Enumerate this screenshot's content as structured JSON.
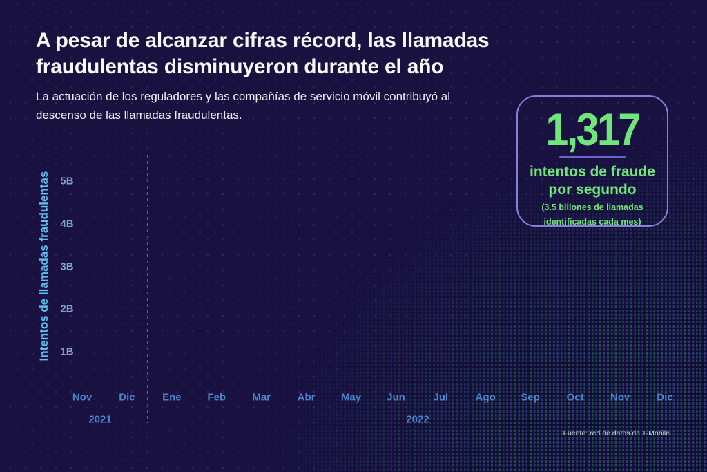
{
  "colors": {
    "background": "#191140",
    "accent_green": "#70e57b",
    "card_border": "#8680d8",
    "divider_purple": "#6a64c8",
    "axis_cyan": "#5ec1f2",
    "tick_blue": "#7fa0cf",
    "month_blue": "#4e84c8",
    "dashed_line": "#46669f"
  },
  "header": {
    "title": "A pesar de alcanzar cifras récord, las llamadas fraudulentas disminuyeron durante el año",
    "subtitle": "La actuación de los reguladores y las compañías de servicio móvil contribuyó al descenso de las llamadas fraudulentas."
  },
  "stat_card": {
    "value": "1,317",
    "label": "intentos de fraude por segundo",
    "detail": "(3.5 billones de llamadas identificadas cada mes)"
  },
  "chart_data": {
    "type": "line",
    "title": "",
    "xlabel": "",
    "ylabel": "Intentos de llamadas fraudulentas",
    "y_ticks": [
      "5B",
      "4B",
      "3B",
      "2B",
      "1B"
    ],
    "ylim": [
      0,
      5500000000
    ],
    "categories": [
      "Nov",
      "Dic",
      "Ene",
      "Feb",
      "Mar",
      "Abr",
      "May",
      "Jun",
      "Jul",
      "Ago",
      "Sep",
      "Oct",
      "Nov",
      "Dic"
    ],
    "year_groups": [
      {
        "label": "2021",
        "months": [
          "Nov",
          "Dic"
        ]
      },
      {
        "label": "2022",
        "months": [
          "Ene",
          "Feb",
          "Mar",
          "Abr",
          "May",
          "Jun",
          "Jul",
          "Ago",
          "Sep",
          "Oct",
          "Nov",
          "Dic"
        ]
      }
    ],
    "series": [],
    "grid": false,
    "legend": "none"
  },
  "source": "Fuente: red de datos de T-Mobile."
}
